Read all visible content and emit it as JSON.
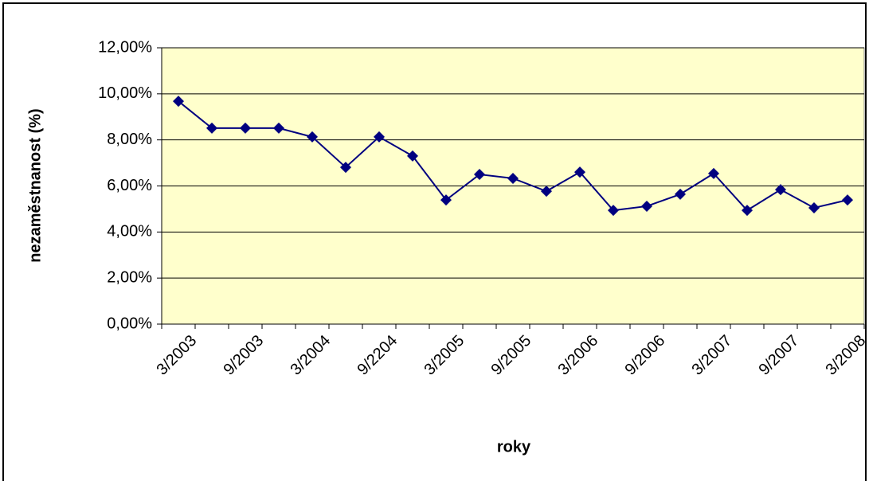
{
  "chart_data": {
    "type": "line",
    "x_label": "roky",
    "y_label": "nezaměstnanost (%)",
    "categories": [
      "3/2003",
      null,
      "9/2003",
      null,
      "3/2004",
      null,
      "9/2204",
      null,
      "3/2005",
      null,
      "9/2005",
      null,
      "3/2006",
      null,
      "9/2006",
      null,
      "3/2007",
      null,
      "9/2007",
      null,
      "3/2008"
    ],
    "series": [
      {
        "name": "nezaměstnanost",
        "color": "#000080",
        "values": [
          9.68,
          8.51,
          8.51,
          8.51,
          8.13,
          6.81,
          8.13,
          7.3,
          5.39,
          6.5,
          6.33,
          5.77,
          6.6,
          4.94,
          5.12,
          5.64,
          6.54,
          4.94,
          5.84,
          5.05,
          5.39
        ]
      }
    ],
    "ylim": [
      0,
      12
    ],
    "yticks": [
      {
        "value": 0,
        "label": "0,00%"
      },
      {
        "value": 2,
        "label": "2,00%"
      },
      {
        "value": 4,
        "label": "4,00%"
      },
      {
        "value": 6,
        "label": "6,00%"
      },
      {
        "value": 8,
        "label": "8,00%"
      },
      {
        "value": 10,
        "label": "10,00%"
      },
      {
        "value": 12,
        "label": "12,00%"
      }
    ],
    "grid": true,
    "plot_background": "#ffffcc"
  }
}
